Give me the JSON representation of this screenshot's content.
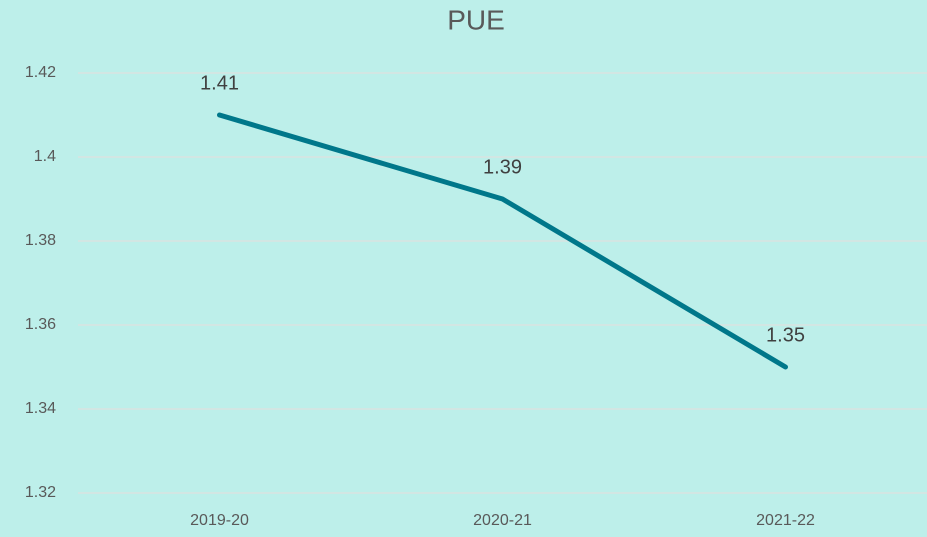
{
  "chart_data": {
    "type": "line",
    "title": "PUE",
    "categories": [
      "2019-20",
      "2020-21",
      "2021-22"
    ],
    "series": [
      {
        "name": "PUE",
        "color": "#00778a",
        "values": [
          1.41,
          1.39,
          1.35
        ]
      }
    ],
    "ylim": [
      1.32,
      1.42
    ],
    "yticks": [
      1.32,
      1.34,
      1.36,
      1.38,
      1.4,
      1.42
    ],
    "grid": true,
    "data_labels": true
  }
}
